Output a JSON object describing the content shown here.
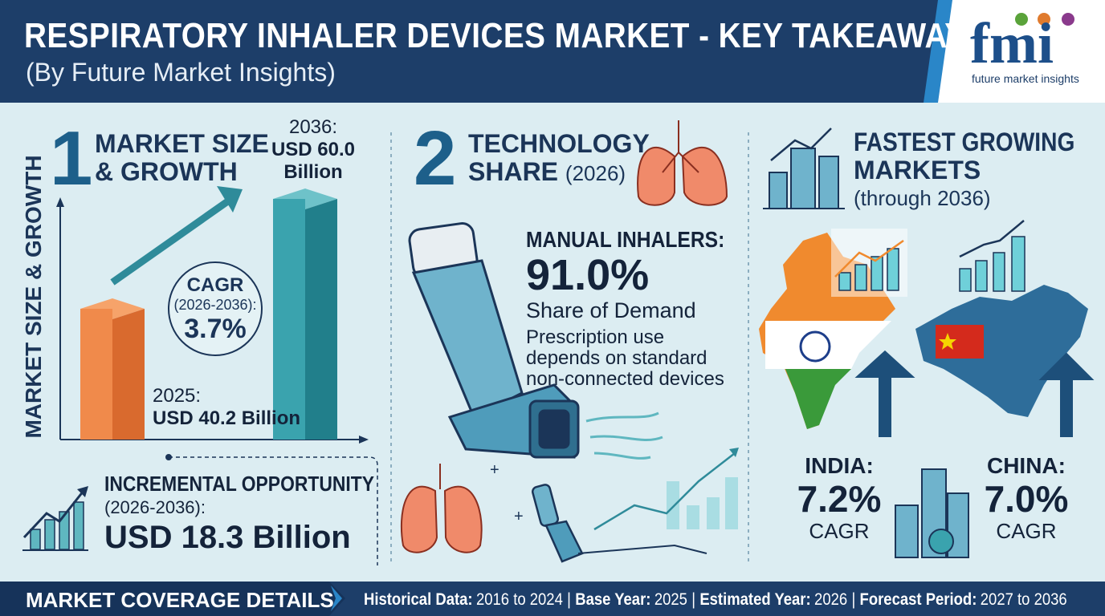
{
  "header": {
    "title": "RESPIRATORY INHALER DEVICES MARKET - KEY TAKEAWAYS",
    "subtitle": "(By Future Market Insights)"
  },
  "logo": {
    "name": "fmi",
    "tagline": "future market insights"
  },
  "market_size": {
    "number": "1",
    "title": [
      "MARKET SIZE",
      "& GROWTH"
    ],
    "axis_label": "MARKET SIZE & GROWTH",
    "end": [
      "2036:",
      "USD 60.0",
      "Billion"
    ],
    "cagr": [
      "CAGR",
      "(2026-2036):",
      "3.7%"
    ],
    "start": [
      "2025:",
      "USD 40.2 Billion"
    ],
    "incremental": [
      "INCREMENTAL OPPORTUNITY",
      "(2026-2036):",
      "USD 18.3 Billion"
    ]
  },
  "technology": {
    "number": "2",
    "title": [
      "TECHNOLOGY",
      "SHARE",
      "(2026)"
    ],
    "segment": "MANUAL INHALERS:",
    "share": "91.0%",
    "share_label": "Share of Demand",
    "description": [
      "Prescription use",
      "depends on standard",
      "non-connected devices"
    ]
  },
  "markets": {
    "title": [
      "FASTEST GROWING",
      "MARKETS",
      "(through 2036)"
    ],
    "items": [
      {
        "name": "INDIA:",
        "value": "7.2%",
        "metric": "CAGR"
      },
      {
        "name": "CHINA:",
        "value": "7.0%",
        "metric": "CAGR"
      }
    ]
  },
  "footer": {
    "label": "MARKET COVERAGE DETAILS",
    "separator": "|",
    "details": [
      {
        "label": "Historical Data:",
        "value": "2016 to 2024"
      },
      {
        "label": "Base Year:",
        "value": "2025"
      },
      {
        "label": "Estimated Year:",
        "value": "2026"
      },
      {
        "label": "Forecast Period:",
        "value": "2027 to 2036"
      }
    ]
  }
}
